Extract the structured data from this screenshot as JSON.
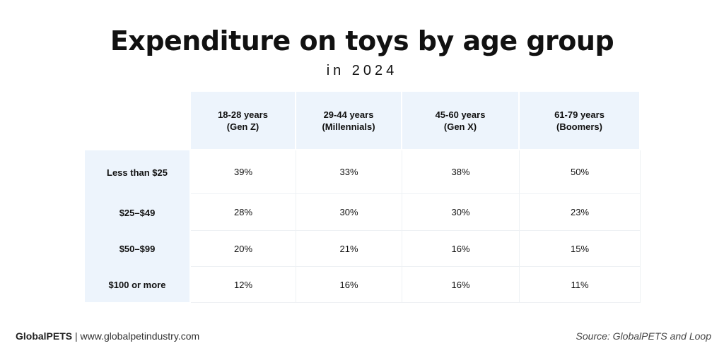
{
  "chart_data": {
    "type": "table",
    "title": "Expenditure on toys by age group",
    "subtitle": "in 2024",
    "columns": [
      {
        "line1": "18-28 years",
        "line2": "(Gen Z)"
      },
      {
        "line1": "29-44 years",
        "line2": "(Millennials)"
      },
      {
        "line1": "45-60 years",
        "line2": "(Gen X)"
      },
      {
        "line1": "61-79 years",
        "line2": "(Boomers)"
      }
    ],
    "rows": [
      {
        "label": "Less than $25",
        "values": [
          "39%",
          "33%",
          "38%",
          "50%"
        ]
      },
      {
        "label": "$25–$49",
        "values": [
          "28%",
          "30%",
          "30%",
          "23%"
        ]
      },
      {
        "label": "$50–$99",
        "values": [
          "20%",
          "21%",
          "16%",
          "15%"
        ]
      },
      {
        "label": "$100 or more",
        "values": [
          "12%",
          "16%",
          "16%",
          "11%"
        ]
      }
    ]
  },
  "footer": {
    "brand": "GlobalPETS",
    "separator": "|",
    "url": "www.globalpetindustry.com",
    "source": "Source: GlobalPETS and Loop"
  },
  "colors": {
    "header_bg": "#edf4fc",
    "text": "#111111"
  }
}
